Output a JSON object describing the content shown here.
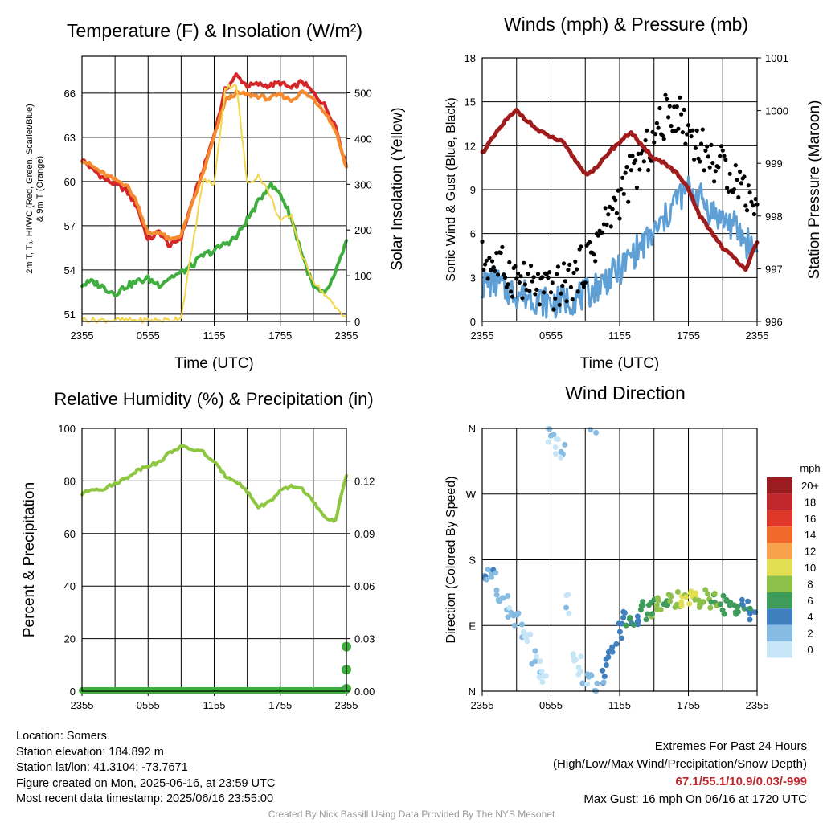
{
  "panels": {
    "temperature": {
      "title": "Temperature (F) & Insolation (W/m²)",
      "ylabel_left": [
        "2m T, Tₐ, HI/WC (Red, Green, Scarlet/Blue)",
        "& 9m T (Orange)"
      ],
      "ylabel_right": "Solar Insolation (Yellow)",
      "xlabel": "Time (UTC)"
    },
    "winds": {
      "title": "Winds (mph) & Pressure (mb)",
      "ylabel_left": "Sonic Wind & Gust (Blue, Black)",
      "ylabel_right": "Station Pressure (Maroon)",
      "xlabel": "Time (UTC)"
    },
    "humidity": {
      "title": "Relative Humidity (%) & Precipitation (in)",
      "ylabel_left": "Percent & Precipitation"
    },
    "direction": {
      "title": "Wind Direction",
      "ylabel_left": "Direction (Colored By Speed)",
      "legend_title": "mph",
      "legend_labels": [
        "20+",
        "18",
        "16",
        "14",
        "12",
        "10",
        "8",
        "6",
        "4",
        "2",
        "0"
      ],
      "legend_colors": [
        "#9b1c20",
        "#c1272d",
        "#e0372b",
        "#f16a2c",
        "#f7a24a",
        "#e3df52",
        "#8ec14a",
        "#3e9b5a",
        "#3f7fbe",
        "#86bbe2",
        "#c6e6f8"
      ]
    }
  },
  "chart_data": [
    {
      "type": "line",
      "title": "Temperature (F) & Insolation (W/m2)",
      "xlabel": "Time (UTC)",
      "xticks": [
        "2355",
        "0555",
        "1155",
        "1755",
        "2355"
      ],
      "x": [
        0,
        1,
        2,
        3,
        4,
        5,
        6,
        7,
        8,
        9,
        10,
        11,
        12,
        13,
        14,
        15,
        16,
        17,
        18,
        19,
        20,
        21,
        22,
        23,
        24
      ],
      "ylim_left": [
        50.5,
        68.5
      ],
      "yticks_left": [
        51,
        54,
        57,
        60,
        63,
        66
      ],
      "ylim_right": [
        0,
        580
      ],
      "yticks_right": [
        0,
        100,
        200,
        300,
        400,
        500
      ],
      "series": [
        {
          "name": "2m T (Red)",
          "color": "#d62728",
          "axis": "left",
          "values": [
            61.5,
            60.8,
            60.2,
            59.8,
            59.4,
            58.3,
            56.0,
            56.6,
            55.6,
            56.2,
            58.6,
            60.8,
            63.2,
            66.2,
            67.2,
            66.5,
            66.6,
            66.5,
            66.7,
            66.3,
            66.8,
            66.0,
            65.2,
            63.8,
            61.0
          ]
        },
        {
          "name": "9m T (Orange)",
          "color": "#f58a2e",
          "axis": "left",
          "values": [
            61.5,
            61.0,
            60.5,
            60.1,
            59.8,
            58.6,
            56.4,
            56.6,
            56.0,
            56.4,
            58.4,
            60.6,
            63.0,
            65.5,
            66.0,
            65.9,
            65.8,
            65.6,
            65.9,
            65.5,
            66.1,
            65.6,
            64.8,
            63.5,
            61.0
          ]
        },
        {
          "name": "Td (Green)",
          "color": "#3fae3f",
          "axis": "left",
          "values": [
            53.0,
            53.2,
            52.8,
            52.4,
            52.9,
            53.2,
            53.4,
            53.0,
            53.5,
            53.8,
            54.3,
            55.0,
            55.3,
            55.8,
            56.2,
            57.4,
            58.6,
            59.8,
            59.2,
            57.5,
            55.0,
            52.8,
            52.3,
            53.7,
            56.0
          ]
        },
        {
          "name": "Solar Insolation (Yellow)",
          "color": "#f3d64a",
          "axis": "right",
          "values": [
            5,
            3,
            3,
            3,
            3,
            3,
            3,
            3,
            3,
            10,
            160,
            310,
            300,
            510,
            520,
            300,
            320,
            280,
            220,
            230,
            140,
            90,
            60,
            30,
            10
          ]
        }
      ]
    },
    {
      "type": "line",
      "title": "Winds (mph) & Pressure (mb)",
      "xlabel": "Time (UTC)",
      "xticks": [
        "2355",
        "0555",
        "1155",
        "1755",
        "2355"
      ],
      "x": [
        0,
        1,
        2,
        3,
        4,
        5,
        6,
        7,
        8,
        9,
        10,
        11,
        12,
        13,
        14,
        15,
        16,
        17,
        18,
        19,
        20,
        21,
        22,
        23,
        24
      ],
      "ylim_left": [
        0,
        18
      ],
      "yticks_left": [
        0,
        3,
        6,
        9,
        12,
        15,
        18
      ],
      "ylim_right": [
        996,
        1001
      ],
      "yticks_right": [
        996,
        997,
        998,
        999,
        1000,
        1001
      ],
      "series": [
        {
          "name": "Sonic Wind (Blue)",
          "color": "#5e9fd6",
          "axis": "left",
          "values": [
            2.5,
            2.8,
            2.2,
            2.0,
            1.8,
            1.5,
            1.2,
            1.4,
            1.6,
            1.8,
            2.4,
            3.0,
            3.5,
            4.5,
            5.2,
            6.0,
            7.0,
            8.5,
            9.0,
            8.5,
            7.5,
            7.0,
            6.5,
            5.5,
            4.8
          ]
        },
        {
          "name": "Gust (Black)",
          "color": "#000000",
          "axis": "left",
          "values": [
            4.2,
            4.0,
            3.5,
            3.0,
            2.5,
            2.2,
            2.0,
            2.5,
            3.0,
            4.0,
            5.5,
            7.0,
            8.5,
            10.0,
            11.0,
            12.5,
            14.0,
            14.5,
            13.0,
            12.0,
            11.0,
            10.5,
            10.0,
            9.0,
            8.0
          ]
        },
        {
          "name": "Station Pressure (Maroon)",
          "color": "#a01c1c",
          "axis": "right",
          "values": [
            999.2,
            999.5,
            999.8,
            1000.0,
            999.8,
            999.6,
            999.5,
            999.4,
            999.1,
            998.8,
            998.9,
            999.2,
            999.4,
            999.6,
            999.3,
            999.1,
            999.0,
            998.8,
            998.5,
            998.0,
            997.7,
            997.4,
            997.2,
            997.0,
            997.5
          ]
        }
      ]
    },
    {
      "type": "line",
      "title": "Relative Humidity (%) & Precipitation (in)",
      "xticks": [
        "2355",
        "0555",
        "1155",
        "1755",
        "2355"
      ],
      "x": [
        0,
        1,
        2,
        3,
        4,
        5,
        6,
        7,
        8,
        9,
        10,
        11,
        12,
        13,
        14,
        15,
        16,
        17,
        18,
        19,
        20,
        21,
        22,
        23,
        24
      ],
      "ylim_left": [
        0,
        100
      ],
      "yticks_left": [
        0,
        20,
        40,
        60,
        80,
        100
      ],
      "ylim_right": [
        0,
        0.15
      ],
      "yticks_right": [
        "0.00",
        "0.03",
        "0.06",
        "0.09",
        "0.12"
      ],
      "series": [
        {
          "name": "Relative Humidity",
          "color": "#8dc63f",
          "axis": "left",
          "values": [
            75,
            77,
            77,
            79,
            81,
            84,
            86,
            87,
            91,
            93,
            92,
            91,
            87,
            82,
            80,
            76,
            70,
            72,
            76,
            78,
            77,
            72,
            66,
            65,
            82
          ]
        },
        {
          "name": "Precipitation",
          "color": "#3fae3f",
          "axis": "right",
          "values": [
            0,
            0,
            0,
            0,
            0,
            0,
            0,
            0,
            0,
            0,
            0,
            0,
            0,
            0,
            0,
            0,
            0,
            0,
            0,
            0,
            0,
            0,
            0,
            0,
            0.03
          ]
        }
      ]
    },
    {
      "type": "scatter",
      "title": "Wind Direction",
      "xticks": [
        "2355",
        "0555",
        "1155",
        "1755",
        "2355"
      ],
      "yticks": [
        "N",
        "E",
        "S",
        "W",
        "N"
      ],
      "ylim": [
        0,
        360
      ],
      "x": [
        0,
        0.5,
        1,
        1.5,
        2,
        2.5,
        3,
        3.5,
        4,
        4.5,
        5,
        5.5,
        6,
        6.5,
        7,
        7.5,
        8,
        8.5,
        9,
        9.5,
        10,
        10.5,
        11,
        11.5,
        12,
        12.5,
        13,
        13.5,
        14,
        14.5,
        15,
        15.5,
        16,
        16.5,
        17,
        17.5,
        18,
        18.5,
        19,
        19.5,
        20,
        20.5,
        21,
        21.5,
        22,
        22.5,
        23,
        23.5,
        24
      ],
      "direction_deg": [
        150,
        155,
        160,
        135,
        120,
        110,
        100,
        80,
        70,
        50,
        30,
        10,
        350,
        335,
        330,
        120,
        50,
        35,
        20,
        10,
        5,
        25,
        40,
        65,
        85,
        95,
        100,
        105,
        110,
        112,
        115,
        120,
        125,
        128,
        127,
        126,
        128,
        124,
        127,
        125,
        122,
        120,
        118,
        117,
        115,
        112,
        110,
        110,
        108
      ],
      "speed_mph": [
        2,
        3,
        3,
        2,
        2,
        1,
        1,
        1,
        0,
        1,
        1,
        0,
        1,
        0,
        1,
        1,
        0,
        1,
        1,
        2,
        2,
        3,
        4,
        4,
        4,
        5,
        5,
        5,
        6,
        6,
        7,
        7,
        7,
        8,
        8,
        9,
        10,
        9,
        8,
        8,
        7,
        7,
        6,
        6,
        6,
        5,
        5,
        5,
        5
      ]
    }
  ],
  "info": {
    "location": "Location: Somers",
    "elevation": "Station elevation: 184.892 m",
    "latlon": "Station lat/lon: 41.3104; -73.7671",
    "created": "Figure created on Mon, 2025-06-16, at 23:59 UTC",
    "recent": "Most recent data timestamp: 2025/06/16 23:55:00"
  },
  "extremes": {
    "title": "Extremes For Past 24 Hours",
    "subtitle": "(High/Low/Max Wind/Precipitation/Snow Depth)",
    "values": "67.1/55.1/10.9/0.03/-999",
    "gust": "Max Gust: 16 mph On 06/16 at 1720 UTC"
  },
  "credit": "Created By Nick Bassill Using Data Provided By The NYS Mesonet"
}
